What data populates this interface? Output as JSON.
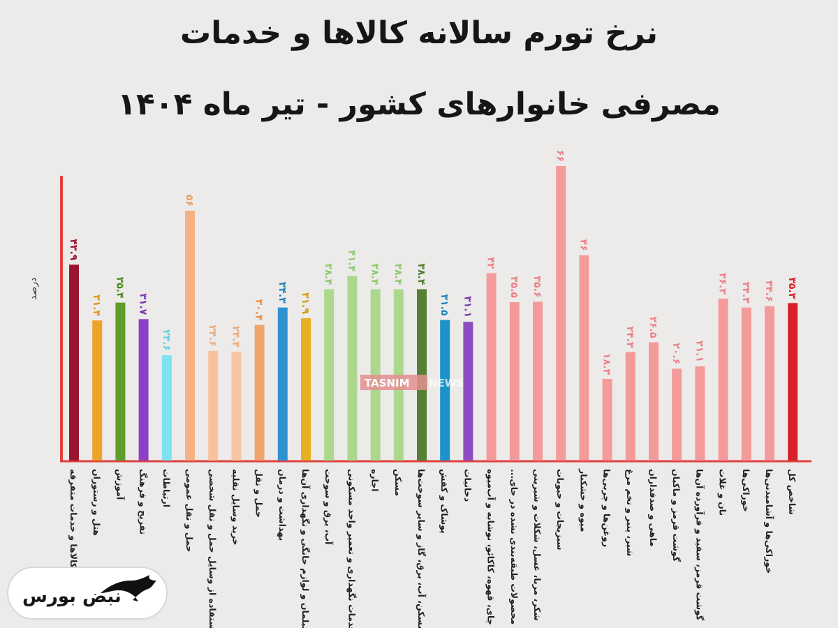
{
  "title_line1": "نرخ تورم سالانه کالاها و خدمات",
  "title_line2": "مصرفی خانوارهای کشور - تیر ماه ۱۴۰۴",
  "watermark_left": "TASNIM",
  "watermark_right": "NEWS",
  "logo_text": "نبض بورس",
  "logo_icon": "bull-icon",
  "chart_data": {
    "type": "bar",
    "title": "نرخ تورم سالانه کالاها و خدمات مصرفی خانوارهای کشور - تیر ماه ۱۴۰۴",
    "ylabel": "درصد",
    "xlabel": "",
    "ylim": [
      0,
      66
    ],
    "grid": false,
    "categories": [
      "کالاها و خدمات متفرقه",
      "هتل و رستوران",
      "آموزش",
      "تفریح و فرهنگ",
      "ارتباطات",
      "حمل و نقل عمومی",
      "استفاده از وسایل حمل و نقل شخصی",
      "خرید وسایل نقلیه",
      "حمل و نقل",
      "بهداشت و درمان",
      "مبلمان و لوازم خانگی و نگهداری آن‌ها",
      "آب، برق و سوخت",
      "خدمات نگهداری و تعمیر واحد مسکونی",
      "اجاره",
      "مسکن",
      "مسکن، آب، برق، گاز و سایر سوخت‌ها",
      "پوشاک و کفش",
      "دخانیات",
      "چای، قهوه، کاکائو، نوشابه و آب‌میوه",
      "محصولات طبقه‌بندی نشده در جای...",
      "شکر، مربا، عسل، شکلات و شیرینی",
      "سبزیجات و حبوبات",
      "میوه و خشکبار",
      "روغن‌ها و چربی‌ها",
      "شیر، پنیر و تخم مرغ",
      "ماهی و صدفداران",
      "گوشت قرمز و ماکیان",
      "گوشت قرمز، سفید و فرآورده آن‌ها",
      "نان و غلات",
      "خوراکی‌ها",
      "خوراکی‌ها و آشامیدنی‌ها",
      "شاخص کل"
    ],
    "values": [
      43.9,
      31.4,
      35.4,
      31.7,
      23.6,
      56,
      24.6,
      24.4,
      30.4,
      34.3,
      31.9,
      38.4,
      41.4,
      38.4,
      38.4,
      38.4,
      31.5,
      31.1,
      42,
      35.5,
      35.6,
      66,
      46,
      18.3,
      24.3,
      26.5,
      20.6,
      21.1,
      36.3,
      34.3,
      34.6,
      35.3
    ],
    "value_labels": [
      "۴۳.۹",
      "۳۱.۴",
      "۳۵.۴",
      "۳۱.۷",
      "۲۳.۶",
      "۵۶",
      "۲۴.۶",
      "۲۴.۴",
      "۳۰.۴",
      "۳۴.۳",
      "۳۱.۹",
      "۳۸.۴",
      "۴۱.۴",
      "۳۸.۴",
      "۳۸.۴",
      "۳۸.۴",
      "۳۱.۵",
      "۳۱.۱",
      "۴۲",
      "۳۵.۵",
      "۳۵.۶",
      "۶۶",
      "۴۶",
      "۱۸.۳",
      "۲۴.۳",
      "۲۶.۵",
      "۲۰.۶",
      "۲۱.۱",
      "۳۶.۳",
      "۳۴.۳",
      "۳۴.۶",
      "۳۵.۳"
    ],
    "colors": [
      "#9b1530",
      "#f0a32a",
      "#5e9c2b",
      "#8e3fc7",
      "#7fe0f0",
      "#f6b183",
      "#f6c39c",
      "#f6c6a2",
      "#f1a56c",
      "#2e92d2",
      "#e6b022",
      "#acd88d",
      "#acd88d",
      "#acd88d",
      "#acd88d",
      "#557f33",
      "#1d92c8",
      "#8c4cbf",
      "#f59a9a",
      "#f59a9a",
      "#f59a9a",
      "#f59a9a",
      "#f59a9a",
      "#f59a9a",
      "#f59a9a",
      "#f59a9a",
      "#f59a9a",
      "#f59a9a",
      "#f59a9a",
      "#f59a9a",
      "#f59a9a",
      "#d8202b"
    ],
    "label_colors": [
      "#9b1530",
      "#e89418",
      "#4d8a1f",
      "#7a30b3",
      "#5fd0e3",
      "#f0a062",
      "#efa878",
      "#efa878",
      "#e98f4a",
      "#1f82c2",
      "#d39a10",
      "#8cc86a",
      "#8cc86a",
      "#8cc86a",
      "#8cc86a",
      "#4f7a2e",
      "#1a86b8",
      "#7a3cae",
      "#ec7f86",
      "#ec7f86",
      "#ec7f86",
      "#ec7f86",
      "#ec7f86",
      "#ec7f86",
      "#ec7f86",
      "#ec7f86",
      "#ec7f86",
      "#ec7f86",
      "#ec7f86",
      "#ec7f86",
      "#ec7f86",
      "#d8202b"
    ],
    "axis_color": "#e04040"
  }
}
